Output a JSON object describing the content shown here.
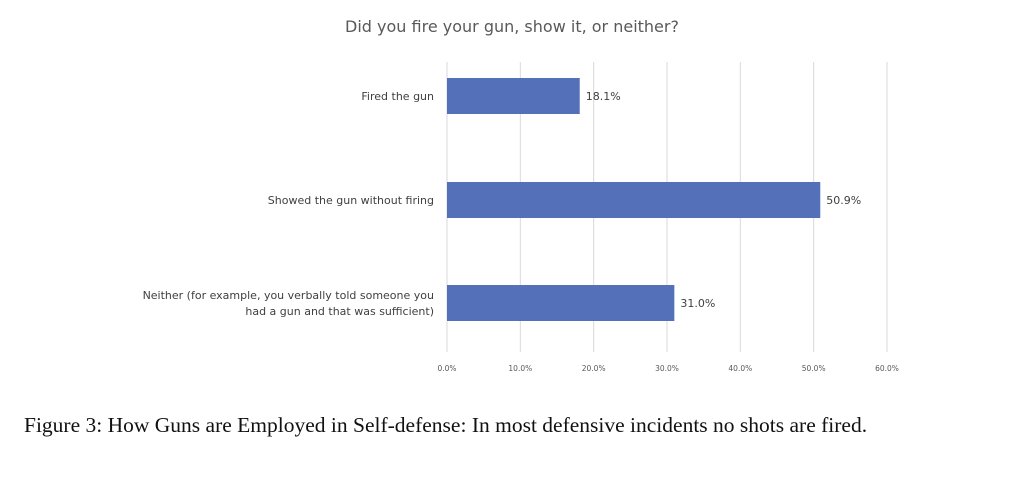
{
  "chart_data": {
    "type": "bar",
    "orientation": "horizontal",
    "title": "Did you fire your gun, show it, or neither?",
    "categories": [
      [
        "Fired the gun"
      ],
      [
        "Showed the gun without firing"
      ],
      [
        "Neither (for example, you verbally told someone you",
        "had a gun and that was sufficient)"
      ]
    ],
    "values": [
      18.1,
      50.9,
      31.0
    ],
    "data_labels": [
      "18.1%",
      "50.9%",
      "31.0%"
    ],
    "xlim": [
      0,
      60
    ],
    "xticks": [
      "0.0%",
      "10.0%",
      "20.0%",
      "30.0%",
      "40.0%",
      "50.0%",
      "60.0%"
    ],
    "grid": true,
    "bar_color": "#5470b8"
  },
  "caption": "Figure 3: How Guns are Employed in Self-defense: In most defensive incidents no shots are fired."
}
